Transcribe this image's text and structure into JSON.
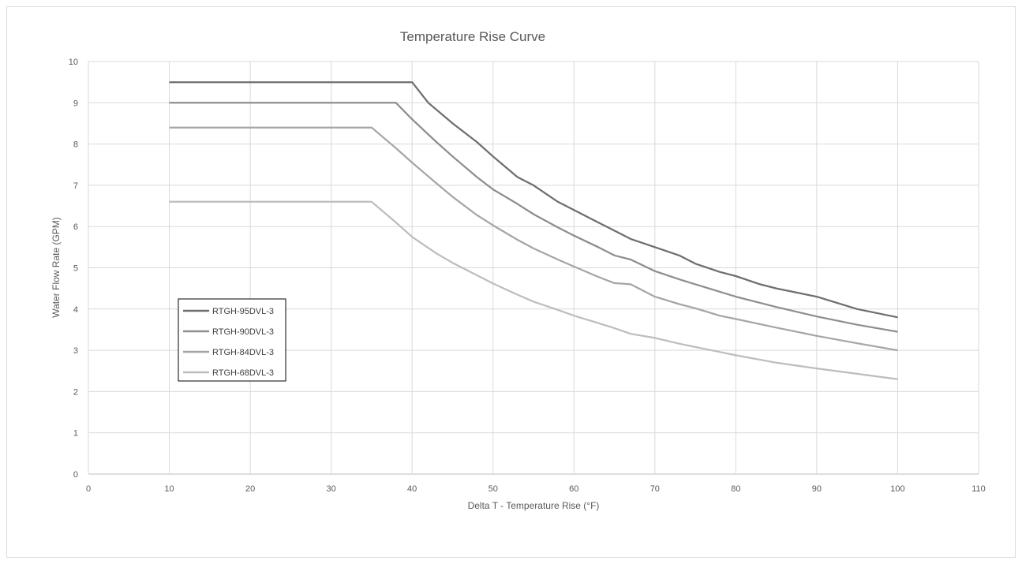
{
  "chart_data": {
    "type": "line",
    "title": "Temperature Rise Curve",
    "xlabel": "Delta T - Temperature Rise (°F)",
    "ylabel": "Water Flow Rate (GPM)",
    "xlim": [
      0,
      110
    ],
    "ylim": [
      0,
      10
    ],
    "x_ticks": [
      0,
      10,
      20,
      30,
      40,
      50,
      60,
      70,
      80,
      90,
      100,
      110
    ],
    "y_ticks": [
      0,
      1,
      2,
      3,
      4,
      5,
      6,
      7,
      8,
      9,
      10
    ],
    "grid": true,
    "legend_position": "left-middle",
    "series": [
      {
        "name": "RTGH-95DVL-3",
        "color": "#6e6e6e",
        "points": [
          [
            10,
            9.5
          ],
          [
            40,
            9.5
          ],
          [
            42,
            9.0
          ],
          [
            45,
            8.5
          ],
          [
            48,
            8.05
          ],
          [
            50,
            7.7
          ],
          [
            53,
            7.2
          ],
          [
            55,
            7.0
          ],
          [
            58,
            6.6
          ],
          [
            60,
            6.4
          ],
          [
            63,
            6.1
          ],
          [
            65,
            5.9
          ],
          [
            67,
            5.7
          ],
          [
            70,
            5.5
          ],
          [
            73,
            5.3
          ],
          [
            75,
            5.1
          ],
          [
            78,
            4.9
          ],
          [
            80,
            4.8
          ],
          [
            83,
            4.6
          ],
          [
            85,
            4.5
          ],
          [
            88,
            4.38
          ],
          [
            90,
            4.3
          ],
          [
            95,
            4.0
          ],
          [
            100,
            3.8
          ]
        ]
      },
      {
        "name": "RTGH-90DVL-3",
        "color": "#8e8e8e",
        "points": [
          [
            10,
            9.0
          ],
          [
            38,
            9.0
          ],
          [
            40,
            8.6
          ],
          [
            43,
            8.05
          ],
          [
            45,
            7.7
          ],
          [
            48,
            7.2
          ],
          [
            50,
            6.9
          ],
          [
            53,
            6.55
          ],
          [
            55,
            6.3
          ],
          [
            58,
            5.98
          ],
          [
            60,
            5.78
          ],
          [
            63,
            5.5
          ],
          [
            65,
            5.3
          ],
          [
            67,
            5.2
          ],
          [
            70,
            4.92
          ],
          [
            73,
            4.72
          ],
          [
            75,
            4.6
          ],
          [
            78,
            4.42
          ],
          [
            80,
            4.3
          ],
          [
            85,
            4.05
          ],
          [
            90,
            3.82
          ],
          [
            95,
            3.62
          ],
          [
            100,
            3.45
          ]
        ]
      },
      {
        "name": "RTGH-84DVL-3",
        "color": "#a5a5a5",
        "points": [
          [
            10,
            8.4
          ],
          [
            35,
            8.4
          ],
          [
            38,
            7.9
          ],
          [
            40,
            7.55
          ],
          [
            43,
            7.05
          ],
          [
            45,
            6.72
          ],
          [
            48,
            6.28
          ],
          [
            50,
            6.03
          ],
          [
            53,
            5.68
          ],
          [
            55,
            5.47
          ],
          [
            58,
            5.2
          ],
          [
            60,
            5.03
          ],
          [
            63,
            4.78
          ],
          [
            65,
            4.63
          ],
          [
            67,
            4.6
          ],
          [
            70,
            4.3
          ],
          [
            73,
            4.12
          ],
          [
            75,
            4.02
          ],
          [
            78,
            3.84
          ],
          [
            80,
            3.76
          ],
          [
            85,
            3.55
          ],
          [
            90,
            3.35
          ],
          [
            95,
            3.17
          ],
          [
            100,
            3.0
          ]
        ]
      },
      {
        "name": "RTGH-68DVL-3",
        "color": "#bdbdbd",
        "points": [
          [
            10,
            6.6
          ],
          [
            35,
            6.6
          ],
          [
            38,
            6.1
          ],
          [
            40,
            5.75
          ],
          [
            43,
            5.35
          ],
          [
            45,
            5.12
          ],
          [
            48,
            4.82
          ],
          [
            50,
            4.62
          ],
          [
            53,
            4.35
          ],
          [
            55,
            4.18
          ],
          [
            58,
            3.98
          ],
          [
            60,
            3.84
          ],
          [
            63,
            3.66
          ],
          [
            65,
            3.54
          ],
          [
            67,
            3.4
          ],
          [
            70,
            3.3
          ],
          [
            73,
            3.16
          ],
          [
            75,
            3.08
          ],
          [
            78,
            2.96
          ],
          [
            80,
            2.88
          ],
          [
            85,
            2.7
          ],
          [
            90,
            2.56
          ],
          [
            95,
            2.43
          ],
          [
            100,
            2.3
          ]
        ]
      }
    ]
  }
}
